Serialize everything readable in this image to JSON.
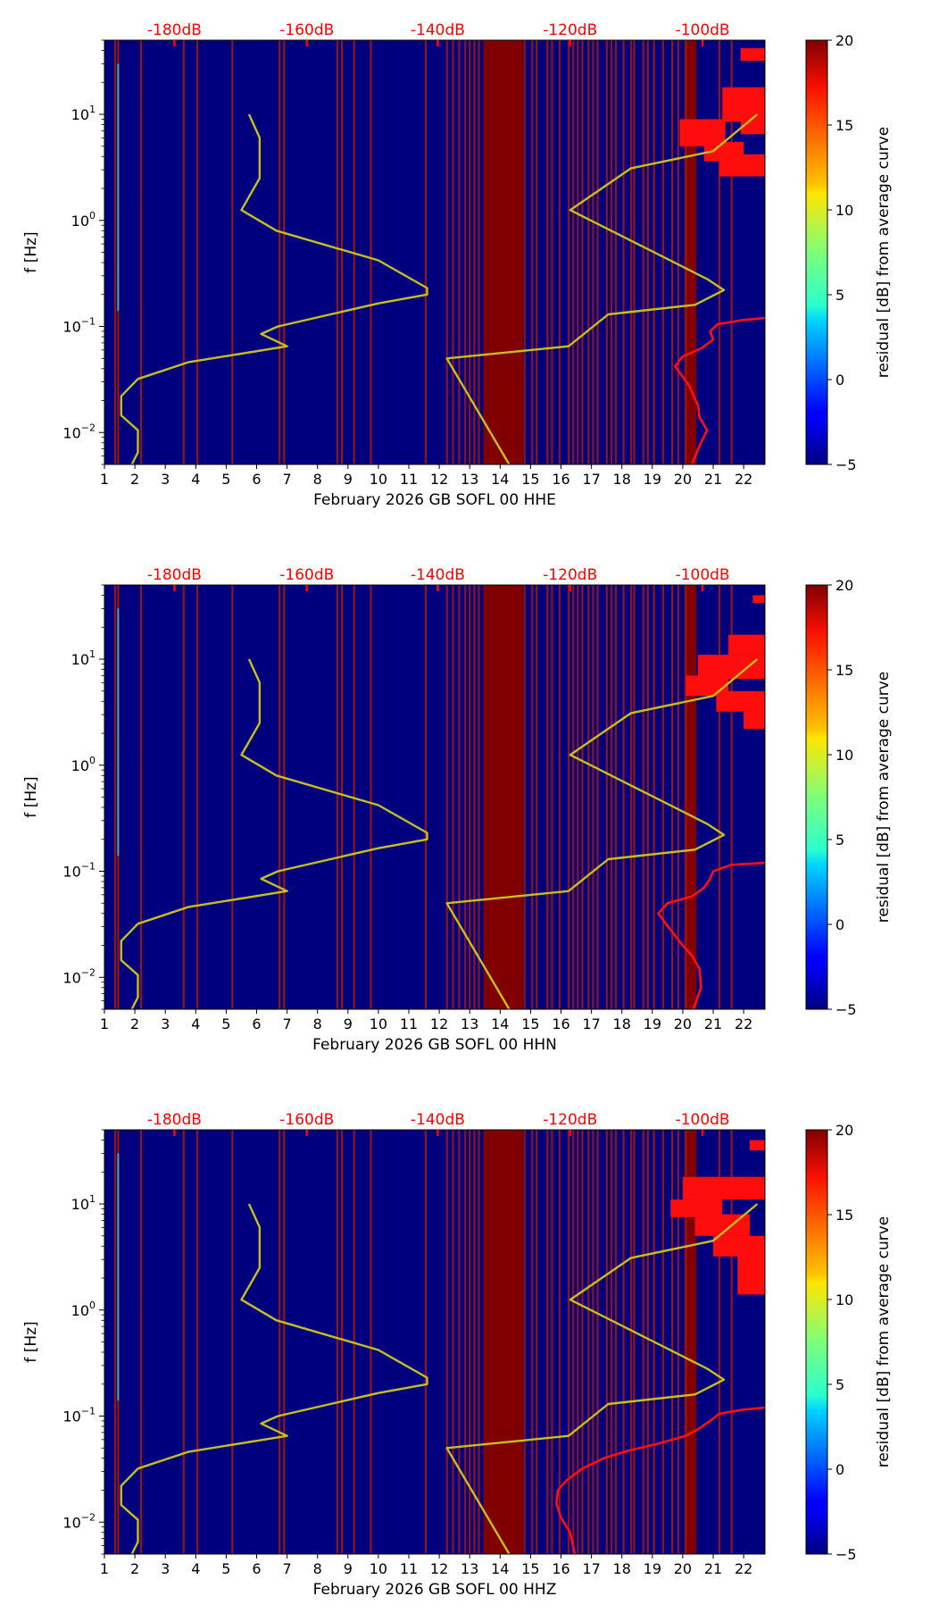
{
  "chart_data": [
    {
      "type": "heatmap",
      "xlabel": "February 2026 GB SOFL 00 HHE",
      "ylabel": "f [Hz]",
      "xticks": [
        "1",
        "2",
        "3",
        "4",
        "5",
        "6",
        "7",
        "8",
        "9",
        "10",
        "11",
        "12",
        "13",
        "14",
        "15",
        "16",
        "17",
        "18",
        "19",
        "20",
        "21",
        "22"
      ],
      "xlim": [
        1,
        22.7
      ],
      "yscale": "log",
      "ylim": [
        0.005,
        50
      ],
      "yticks": [
        {
          "value": 0.01,
          "base": "10",
          "exp": "−2"
        },
        {
          "value": 0.1,
          "base": "10",
          "exp": "−1"
        },
        {
          "value": 1,
          "base": "10",
          "exp": "0"
        },
        {
          "value": 10,
          "base": "10",
          "exp": "1"
        }
      ],
      "top_axis_ticks": [
        {
          "label": "-180dB",
          "day": 3.3
        },
        {
          "label": "-160dB",
          "day": 7.65
        },
        {
          "label": "-140dB",
          "day": 11.95
        },
        {
          "label": "-120dB",
          "day": 16.3
        },
        {
          "label": "-100dB",
          "day": 20.65
        }
      ],
      "colorbar": {
        "label": "residual [dB] from average curve",
        "min": -5,
        "max": 20,
        "ticks": [
          "20",
          "15",
          "10",
          "5",
          "0",
          "−5"
        ]
      },
      "background_color": "#00007f",
      "data_gap_days": [
        1.35,
        1.45,
        2.2,
        3.6,
        4.05,
        5.2,
        6.75,
        6.9,
        8.65,
        8.8,
        9.2,
        9.75,
        11.55,
        12.25,
        12.45,
        12.65,
        12.85,
        13.0,
        13.15,
        13.3,
        14.8,
        15.05,
        15.2,
        15.55,
        15.7,
        15.95,
        16.25,
        16.4,
        16.55,
        16.7,
        16.9,
        17.05,
        17.2,
        17.5,
        17.65,
        17.8,
        18.05,
        18.3,
        18.4,
        18.7,
        18.85,
        19.05,
        19.35,
        19.65,
        19.85,
        20.1,
        21.2,
        21.6
      ],
      "saturated_blocks": [
        [
          13.45,
          14.75
        ],
        [
          20.05,
          20.45
        ]
      ],
      "low_noise_model": [
        [
          5.75,
          10
        ],
        [
          6.1,
          6
        ],
        [
          6.1,
          2.5
        ],
        [
          5.5,
          1.25
        ],
        [
          6.65,
          0.8
        ],
        [
          10.0,
          0.42
        ],
        [
          11.6,
          0.23
        ],
        [
          11.6,
          0.2
        ],
        [
          10.0,
          0.165
        ],
        [
          6.7,
          0.1
        ],
        [
          6.15,
          0.085
        ],
        [
          7.0,
          0.065
        ],
        [
          3.75,
          0.046
        ],
        [
          2.1,
          0.032
        ],
        [
          1.55,
          0.022
        ],
        [
          1.55,
          0.0145
        ],
        [
          2.1,
          0.0105
        ],
        [
          2.1,
          0.0065
        ],
        [
          1.9,
          0.005
        ]
      ],
      "high_noise_model": [
        [
          22.45,
          10
        ],
        [
          21.0,
          4.5
        ],
        [
          18.3,
          3.1
        ],
        [
          16.3,
          1.25
        ],
        [
          20.8,
          0.28
        ],
        [
          21.35,
          0.22
        ],
        [
          20.4,
          0.16
        ],
        [
          17.55,
          0.13
        ],
        [
          16.25,
          0.065
        ],
        [
          12.25,
          0.05
        ],
        [
          14.3,
          0.005
        ]
      ],
      "mode_curve": [
        [
          22.7,
          0.12
        ],
        [
          22.0,
          0.115
        ],
        [
          21.15,
          0.105
        ],
        [
          20.9,
          0.09
        ],
        [
          21.0,
          0.075
        ],
        [
          20.6,
          0.062
        ],
        [
          20.0,
          0.052
        ],
        [
          19.75,
          0.042
        ],
        [
          20.2,
          0.028
        ],
        [
          20.5,
          0.018
        ],
        [
          20.55,
          0.014
        ],
        [
          20.8,
          0.0105
        ],
        [
          20.55,
          0.0075
        ],
        [
          20.3,
          0.005
        ]
      ],
      "hot_regions": [
        {
          "x0": 21.9,
          "x1": 22.7,
          "y0": 32,
          "y1": 42
        },
        {
          "x0": 21.3,
          "x1": 22.7,
          "y0": 8.5,
          "y1": 18
        },
        {
          "x0": 21.9,
          "x1": 22.7,
          "y0": 6.5,
          "y1": 9
        },
        {
          "x0": 19.9,
          "x1": 21.4,
          "y0": 5.0,
          "y1": 9
        },
        {
          "x0": 20.7,
          "x1": 22.0,
          "y0": 3.6,
          "y1": 5.5
        },
        {
          "x0": 21.2,
          "x1": 22.7,
          "y0": 2.6,
          "y1": 4.2
        }
      ]
    },
    {
      "type": "heatmap",
      "xlabel": "February 2026 GB SOFL 00 HHN",
      "ylabel": "f [Hz]",
      "xticks": [
        "1",
        "2",
        "3",
        "4",
        "5",
        "6",
        "7",
        "8",
        "9",
        "10",
        "11",
        "12",
        "13",
        "14",
        "15",
        "16",
        "17",
        "18",
        "19",
        "20",
        "21",
        "22"
      ],
      "xlim": [
        1,
        22.7
      ],
      "yscale": "log",
      "ylim": [
        0.005,
        50
      ],
      "yticks": [
        {
          "value": 0.01,
          "base": "10",
          "exp": "−2"
        },
        {
          "value": 0.1,
          "base": "10",
          "exp": "−1"
        },
        {
          "value": 1,
          "base": "10",
          "exp": "0"
        },
        {
          "value": 10,
          "base": "10",
          "exp": "1"
        }
      ],
      "top_axis_ticks": [
        {
          "label": "-180dB",
          "day": 3.3
        },
        {
          "label": "-160dB",
          "day": 7.65
        },
        {
          "label": "-140dB",
          "day": 11.95
        },
        {
          "label": "-120dB",
          "day": 16.3
        },
        {
          "label": "-100dB",
          "day": 20.65
        }
      ],
      "colorbar": {
        "label": "residual [dB] from average curve",
        "min": -5,
        "max": 20,
        "ticks": [
          "20",
          "15",
          "10",
          "5",
          "0",
          "−5"
        ]
      },
      "background_color": "#00007f",
      "data_gap_days": [
        1.35,
        1.45,
        2.2,
        3.6,
        4.05,
        5.2,
        6.75,
        6.9,
        8.65,
        8.8,
        9.2,
        9.75,
        11.55,
        12.25,
        12.45,
        12.65,
        12.85,
        13.0,
        13.15,
        13.3,
        14.8,
        15.05,
        15.2,
        15.55,
        15.7,
        15.95,
        16.25,
        16.4,
        16.55,
        16.7,
        16.9,
        17.05,
        17.2,
        17.5,
        17.65,
        17.8,
        18.05,
        18.3,
        18.4,
        18.7,
        18.85,
        19.05,
        19.35,
        19.65,
        19.85,
        20.1,
        21.2,
        21.6
      ],
      "saturated_blocks": [
        [
          13.45,
          14.75
        ],
        [
          20.05,
          20.45
        ]
      ],
      "low_noise_model": [
        [
          5.75,
          10
        ],
        [
          6.1,
          6
        ],
        [
          6.1,
          2.5
        ],
        [
          5.5,
          1.25
        ],
        [
          6.65,
          0.8
        ],
        [
          10.0,
          0.42
        ],
        [
          11.6,
          0.23
        ],
        [
          11.6,
          0.2
        ],
        [
          10.0,
          0.165
        ],
        [
          6.7,
          0.1
        ],
        [
          6.15,
          0.085
        ],
        [
          7.0,
          0.065
        ],
        [
          3.75,
          0.046
        ],
        [
          2.1,
          0.032
        ],
        [
          1.55,
          0.022
        ],
        [
          1.55,
          0.0145
        ],
        [
          2.1,
          0.0105
        ],
        [
          2.1,
          0.0065
        ],
        [
          1.9,
          0.005
        ]
      ],
      "high_noise_model": [
        [
          22.45,
          10
        ],
        [
          21.0,
          4.5
        ],
        [
          18.3,
          3.1
        ],
        [
          16.3,
          1.25
        ],
        [
          20.8,
          0.28
        ],
        [
          21.35,
          0.22
        ],
        [
          20.4,
          0.16
        ],
        [
          17.55,
          0.13
        ],
        [
          16.25,
          0.065
        ],
        [
          12.25,
          0.05
        ],
        [
          14.3,
          0.005
        ]
      ],
      "mode_curve": [
        [
          22.7,
          0.12
        ],
        [
          21.6,
          0.115
        ],
        [
          21.0,
          0.1
        ],
        [
          20.9,
          0.085
        ],
        [
          20.7,
          0.07
        ],
        [
          20.3,
          0.058
        ],
        [
          19.5,
          0.05
        ],
        [
          19.2,
          0.04
        ],
        [
          19.6,
          0.028
        ],
        [
          20.0,
          0.02
        ],
        [
          20.3,
          0.016
        ],
        [
          20.55,
          0.012
        ],
        [
          20.6,
          0.008
        ],
        [
          20.35,
          0.005
        ]
      ],
      "hot_regions": [
        {
          "x0": 22.3,
          "x1": 22.7,
          "y0": 34,
          "y1": 40
        },
        {
          "x0": 21.5,
          "x1": 22.7,
          "y0": 11,
          "y1": 17
        },
        {
          "x0": 20.5,
          "x1": 22.7,
          "y0": 6.5,
          "y1": 11
        },
        {
          "x0": 20.1,
          "x1": 21.5,
          "y0": 4.5,
          "y1": 7
        },
        {
          "x0": 21.1,
          "x1": 22.7,
          "y0": 3.2,
          "y1": 5
        },
        {
          "x0": 22.0,
          "x1": 22.7,
          "y0": 2.2,
          "y1": 3.3
        }
      ]
    },
    {
      "type": "heatmap",
      "xlabel": "February 2026 GB SOFL 00 HHZ",
      "ylabel": "f [Hz]",
      "xticks": [
        "1",
        "2",
        "3",
        "4",
        "5",
        "6",
        "7",
        "8",
        "9",
        "10",
        "11",
        "12",
        "13",
        "14",
        "15",
        "16",
        "17",
        "18",
        "19",
        "20",
        "21",
        "22"
      ],
      "xlim": [
        1,
        22.7
      ],
      "yscale": "log",
      "ylim": [
        0.005,
        50
      ],
      "yticks": [
        {
          "value": 0.01,
          "base": "10",
          "exp": "−2"
        },
        {
          "value": 0.1,
          "base": "10",
          "exp": "−1"
        },
        {
          "value": 1,
          "base": "10",
          "exp": "0"
        },
        {
          "value": 10,
          "base": "10",
          "exp": "1"
        }
      ],
      "top_axis_ticks": [
        {
          "label": "-180dB",
          "day": 3.3
        },
        {
          "label": "-160dB",
          "day": 7.65
        },
        {
          "label": "-140dB",
          "day": 11.95
        },
        {
          "label": "-120dB",
          "day": 16.3
        },
        {
          "label": "-100dB",
          "day": 20.65
        }
      ],
      "colorbar": {
        "label": "residual [dB] from average curve",
        "min": -5,
        "max": 20,
        "ticks": [
          "20",
          "15",
          "10",
          "5",
          "0",
          "−5"
        ]
      },
      "background_color": "#00007f",
      "data_gap_days": [
        1.35,
        1.45,
        2.2,
        3.6,
        4.05,
        5.2,
        6.75,
        6.9,
        8.65,
        8.8,
        9.2,
        9.75,
        11.55,
        12.25,
        12.45,
        12.65,
        12.85,
        13.0,
        13.15,
        13.3,
        14.8,
        15.05,
        15.2,
        15.55,
        15.7,
        15.95,
        16.25,
        16.4,
        16.55,
        16.7,
        16.9,
        17.05,
        17.2,
        17.5,
        17.65,
        17.8,
        18.05,
        18.3,
        18.4,
        18.7,
        18.85,
        19.05,
        19.35,
        19.65,
        19.85,
        20.1,
        21.2,
        21.6
      ],
      "saturated_blocks": [
        [
          13.45,
          14.75
        ],
        [
          20.05,
          20.45
        ]
      ],
      "low_noise_model": [
        [
          5.75,
          10
        ],
        [
          6.1,
          6
        ],
        [
          6.1,
          2.5
        ],
        [
          5.5,
          1.25
        ],
        [
          6.65,
          0.8
        ],
        [
          10.0,
          0.42
        ],
        [
          11.6,
          0.23
        ],
        [
          11.6,
          0.2
        ],
        [
          10.0,
          0.165
        ],
        [
          6.7,
          0.1
        ],
        [
          6.15,
          0.085
        ],
        [
          7.0,
          0.065
        ],
        [
          3.75,
          0.046
        ],
        [
          2.1,
          0.032
        ],
        [
          1.55,
          0.022
        ],
        [
          1.55,
          0.0145
        ],
        [
          2.1,
          0.0105
        ],
        [
          2.1,
          0.0065
        ],
        [
          1.9,
          0.005
        ]
      ],
      "high_noise_model": [
        [
          22.45,
          10
        ],
        [
          21.0,
          4.5
        ],
        [
          18.3,
          3.1
        ],
        [
          16.3,
          1.25
        ],
        [
          20.8,
          0.28
        ],
        [
          21.35,
          0.22
        ],
        [
          20.4,
          0.16
        ],
        [
          17.55,
          0.13
        ],
        [
          16.25,
          0.065
        ],
        [
          12.25,
          0.05
        ],
        [
          14.3,
          0.005
        ]
      ],
      "mode_curve": [
        [
          22.7,
          0.12
        ],
        [
          22.0,
          0.115
        ],
        [
          21.2,
          0.105
        ],
        [
          20.9,
          0.09
        ],
        [
          20.5,
          0.075
        ],
        [
          20.1,
          0.065
        ],
        [
          19.2,
          0.055
        ],
        [
          18.2,
          0.047
        ],
        [
          17.4,
          0.04
        ],
        [
          16.7,
          0.032
        ],
        [
          16.2,
          0.025
        ],
        [
          15.9,
          0.02
        ],
        [
          15.85,
          0.015
        ],
        [
          16.0,
          0.011
        ],
        [
          16.3,
          0.008
        ],
        [
          16.45,
          0.005
        ]
      ],
      "hot_regions": [
        {
          "x0": 22.2,
          "x1": 22.7,
          "y0": 32,
          "y1": 40
        },
        {
          "x0": 20.0,
          "x1": 22.7,
          "y0": 11,
          "y1": 18
        },
        {
          "x0": 19.6,
          "x1": 21.3,
          "y0": 7.5,
          "y1": 11
        },
        {
          "x0": 20.4,
          "x1": 22.2,
          "y0": 5,
          "y1": 8
        },
        {
          "x0": 21.0,
          "x1": 22.7,
          "y0": 3.2,
          "y1": 5
        },
        {
          "x0": 21.8,
          "x1": 22.7,
          "y0": 1.4,
          "y1": 3.3
        }
      ]
    }
  ]
}
